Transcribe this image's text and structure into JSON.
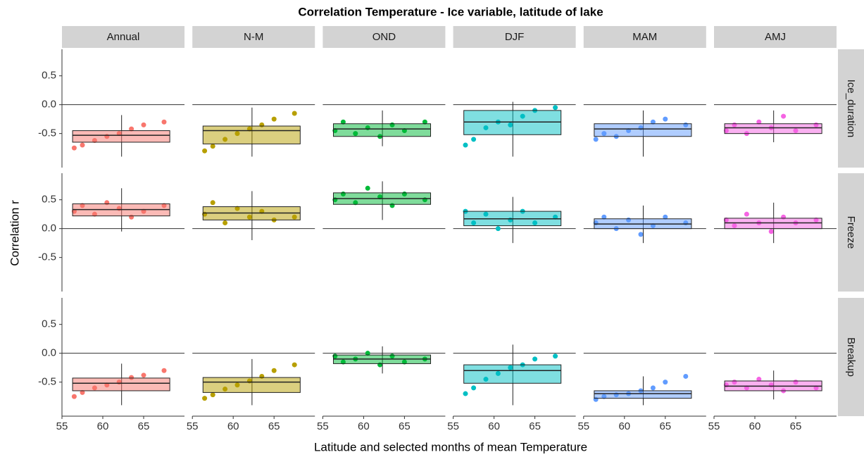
{
  "chart_data": {
    "type": "faceted-scatter-box",
    "title": "Correlation Temperature - Ice variable, latitude of lake",
    "x_label": "Latitude and selected months of mean Temperature",
    "y_label": "Correlation r",
    "xlim": [
      55,
      70
    ],
    "xticks": [
      55,
      60,
      65
    ],
    "ylim": [
      -1.09,
      0.96
    ],
    "yticks": [
      -0.5,
      {
        "value": 0,
        "label": "0.0"
      },
      0.5
    ],
    "reference_line": 0,
    "box_x": [
      56.3,
      68.2
    ],
    "whisker_x": 62.3,
    "point_x": [
      56.5,
      57.5,
      59,
      60.5,
      62,
      63.5,
      65,
      67.5
    ],
    "columns": [
      {
        "name": "Annual",
        "color": "#F8766D"
      },
      {
        "name": "N-M",
        "color": "#B79F00"
      },
      {
        "name": "OND",
        "color": "#00BA38"
      },
      {
        "name": "DJF",
        "color": "#00BFC4"
      },
      {
        "name": "MAM",
        "color": "#619CFF"
      },
      {
        "name": "AMJ",
        "color": "#F564E3"
      }
    ],
    "rows": [
      {
        "name": "Ice_duration",
        "panels": [
          {
            "lower": -0.9,
            "q1": -0.65,
            "median": -0.53,
            "q3": -0.45,
            "upper": -0.18,
            "points": [
              -0.75,
              -0.7,
              -0.62,
              -0.55,
              -0.5,
              -0.42,
              -0.35,
              -0.3
            ]
          },
          {
            "lower": -0.9,
            "q1": -0.68,
            "median": -0.45,
            "q3": -0.37,
            "upper": -0.05,
            "points": [
              -0.8,
              -0.72,
              -0.6,
              -0.5,
              -0.42,
              -0.35,
              -0.25,
              -0.15
            ]
          },
          {
            "lower": -0.72,
            "q1": -0.55,
            "median": -0.42,
            "q3": -0.33,
            "upper": -0.1,
            "points": [
              -0.45,
              -0.3,
              -0.5,
              -0.4,
              -0.55,
              -0.35,
              -0.45,
              -0.3
            ]
          },
          {
            "lower": -0.9,
            "q1": -0.52,
            "median": -0.3,
            "q3": -0.1,
            "upper": 0.05,
            "points": [
              -0.7,
              -0.6,
              -0.4,
              -0.3,
              -0.35,
              -0.2,
              -0.1,
              -0.05
            ]
          },
          {
            "lower": -0.9,
            "q1": -0.55,
            "median": -0.42,
            "q3": -0.33,
            "upper": -0.1,
            "points": [
              -0.6,
              -0.5,
              -0.55,
              -0.45,
              -0.4,
              -0.3,
              -0.25,
              -0.35
            ]
          },
          {
            "lower": -0.65,
            "q1": -0.5,
            "median": -0.4,
            "q3": -0.33,
            "upper": -0.1,
            "points": [
              -0.45,
              -0.35,
              -0.5,
              -0.3,
              -0.4,
              -0.2,
              -0.45,
              -0.35
            ]
          }
        ]
      },
      {
        "name": "Freeze",
        "panels": [
          {
            "lower": -0.05,
            "q1": 0.22,
            "median": 0.33,
            "q3": 0.43,
            "upper": 0.7,
            "points": [
              0.3,
              0.4,
              0.25,
              0.45,
              0.35,
              0.2,
              0.3,
              0.4
            ]
          },
          {
            "lower": -0.2,
            "q1": 0.15,
            "median": 0.27,
            "q3": 0.38,
            "upper": 0.65,
            "points": [
              0.25,
              0.45,
              0.1,
              0.35,
              0.2,
              0.3,
              0.15,
              0.2
            ]
          },
          {
            "lower": 0.15,
            "q1": 0.42,
            "median": 0.52,
            "q3": 0.62,
            "upper": 0.82,
            "points": [
              0.5,
              0.6,
              0.45,
              0.7,
              0.55,
              0.4,
              0.6,
              0.5
            ]
          },
          {
            "lower": -0.25,
            "q1": 0.05,
            "median": 0.17,
            "q3": 0.3,
            "upper": 0.55,
            "points": [
              0.3,
              0.1,
              0.25,
              0.0,
              0.15,
              0.3,
              0.1,
              0.2
            ]
          },
          {
            "lower": -0.25,
            "q1": 0.0,
            "median": 0.08,
            "q3": 0.17,
            "upper": 0.4,
            "points": [
              0.1,
              0.2,
              0.0,
              0.15,
              -0.1,
              0.05,
              0.2,
              0.1
            ]
          },
          {
            "lower": -0.25,
            "q1": 0.0,
            "median": 0.1,
            "q3": 0.18,
            "upper": 0.45,
            "points": [
              0.15,
              0.05,
              0.25,
              0.1,
              -0.05,
              0.2,
              0.1,
              0.15
            ]
          }
        ]
      },
      {
        "name": "Breakup",
        "panels": [
          {
            "lower": -0.9,
            "q1": -0.65,
            "median": -0.52,
            "q3": -0.43,
            "upper": -0.18,
            "points": [
              -0.75,
              -0.68,
              -0.6,
              -0.55,
              -0.5,
              -0.42,
              -0.38,
              -0.3
            ]
          },
          {
            "lower": -0.9,
            "q1": -0.68,
            "median": -0.5,
            "q3": -0.42,
            "upper": -0.1,
            "points": [
              -0.78,
              -0.72,
              -0.62,
              -0.55,
              -0.48,
              -0.4,
              -0.3,
              -0.2
            ]
          },
          {
            "lower": -0.35,
            "q1": -0.18,
            "median": -0.1,
            "q3": -0.03,
            "upper": 0.12,
            "points": [
              -0.05,
              -0.15,
              -0.1,
              0.0,
              -0.2,
              -0.05,
              -0.15,
              -0.1
            ]
          },
          {
            "lower": -0.9,
            "q1": -0.52,
            "median": -0.3,
            "q3": -0.2,
            "upper": 0.15,
            "points": [
              -0.7,
              -0.6,
              -0.45,
              -0.35,
              -0.25,
              -0.2,
              -0.1,
              -0.05
            ]
          },
          {
            "lower": -0.9,
            "q1": -0.78,
            "median": -0.7,
            "q3": -0.65,
            "upper": -0.4,
            "points": [
              -0.8,
              -0.75,
              -0.72,
              -0.7,
              -0.65,
              -0.6,
              -0.5,
              -0.4
            ]
          },
          {
            "lower": -0.8,
            "q1": -0.65,
            "median": -0.57,
            "q3": -0.48,
            "upper": -0.3,
            "points": [
              -0.55,
              -0.5,
              -0.6,
              -0.45,
              -0.55,
              -0.65,
              -0.5,
              -0.6
            ]
          }
        ]
      }
    ]
  }
}
